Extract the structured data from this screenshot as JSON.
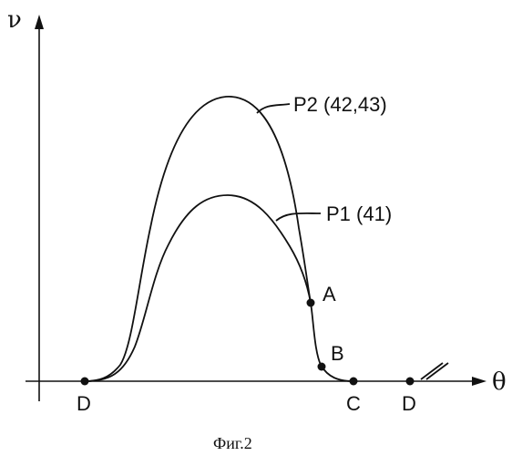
{
  "chart_data": {
    "type": "line",
    "xlabel": "θ",
    "ylabel": "ν",
    "caption": "Фиг.2",
    "series": [
      {
        "name": "P2 (42,43)",
        "curve_id": "p2"
      },
      {
        "name": "P1 (41)",
        "curve_id": "p1"
      }
    ],
    "points": [
      {
        "label": "D",
        "position": "x-axis"
      },
      {
        "label": "C",
        "position": "x-axis"
      },
      {
        "label": "D",
        "position": "x-axis"
      },
      {
        "label": "A",
        "position": "on-curve"
      },
      {
        "label": "B",
        "position": "on-curve"
      }
    ],
    "grid": false,
    "legend": "labels on curves"
  }
}
